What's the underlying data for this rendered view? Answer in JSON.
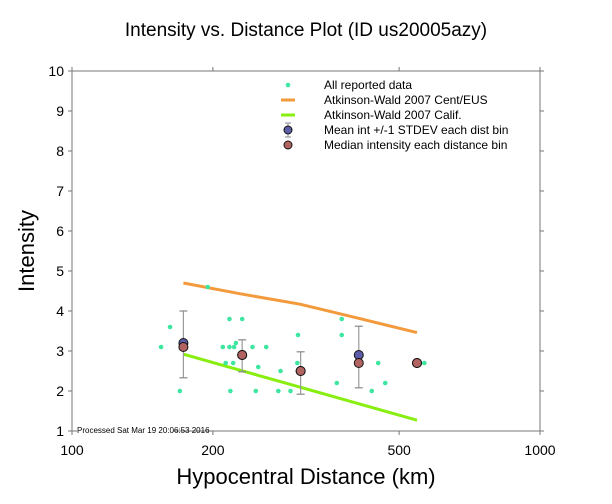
{
  "chart_data": {
    "type": "scatter",
    "title": "Intensity vs. Distance Plot (ID us20005azy)",
    "xlabel": "Hypocentral Distance (km)",
    "ylabel": "Intensity",
    "xscale": "log",
    "xlim": [
      100,
      1000
    ],
    "ylim": [
      1,
      10
    ],
    "xticks": [
      100,
      200,
      500,
      1000
    ],
    "xtick_labels": [
      "100",
      "200",
      "500",
      "1000"
    ],
    "yticks": [
      1,
      2,
      3,
      4,
      5,
      6,
      7,
      8,
      9,
      10
    ],
    "ytick_labels": [
      "1",
      "2",
      "3",
      "4",
      "5",
      "6",
      "7",
      "8",
      "9",
      "10"
    ],
    "grid": false,
    "legend_position": "top-right",
    "annotation": "Processed Sat Mar 19 20:06:53 2016",
    "legend": [
      {
        "label": "All reported data",
        "kind": "dot",
        "color": "#3ee6a0"
      },
      {
        "label": "Atkinson-Wald 2007 Cent/EUS",
        "kind": "line",
        "color": "#f39a3c"
      },
      {
        "label": "Atkinson-Wald 2007 Calif.",
        "kind": "line",
        "color": "#88ee10"
      },
      {
        "label": "Mean int +/-1 STDEV each dist bin",
        "kind": "circle-errorbar",
        "color": "#5c5ca8"
      },
      {
        "label": "Median intensity each distance bin",
        "kind": "circle",
        "color": "#b26462"
      }
    ],
    "series": [
      {
        "name": "All reported data",
        "color": "#3ee6a0",
        "points": [
          [
            155,
            3.1
          ],
          [
            162,
            3.6
          ],
          [
            170,
            2.0
          ],
          [
            195,
            4.6
          ],
          [
            210,
            3.1
          ],
          [
            213,
            2.7
          ],
          [
            217,
            3.8
          ],
          [
            217,
            3.1
          ],
          [
            218,
            2.0
          ],
          [
            221,
            2.7
          ],
          [
            222,
            3.1
          ],
          [
            224,
            3.2
          ],
          [
            231,
            3.8
          ],
          [
            243,
            3.1
          ],
          [
            247,
            2.0
          ],
          [
            250,
            2.6
          ],
          [
            260,
            3.1
          ],
          [
            276,
            2.0
          ],
          [
            279,
            2.5
          ],
          [
            293,
            2.0
          ],
          [
            303,
            2.7
          ],
          [
            304,
            3.4
          ],
          [
            368,
            2.2
          ],
          [
            377,
            3.8
          ],
          [
            377,
            3.4
          ],
          [
            437,
            2.0
          ],
          [
            451,
            2.7
          ],
          [
            467,
            2.2
          ],
          [
            566,
            2.7
          ]
        ]
      },
      {
        "name": "Atkinson-Wald 2007 Cent/EUS",
        "color": "#f39a3c",
        "line": [
          [
            173,
            4.7
          ],
          [
            229,
            4.43
          ],
          [
            307,
            4.17
          ],
          [
            412,
            3.81
          ],
          [
            546,
            3.46
          ]
        ]
      },
      {
        "name": "Atkinson-Wald 2007 Calif.",
        "color": "#88ee10",
        "line": [
          [
            173,
            2.92
          ],
          [
            546,
            1.27
          ]
        ]
      },
      {
        "name": "Mean int +/-1 STDEV each dist bin",
        "color": "#5c5ca8",
        "bins": [
          {
            "distance": 173,
            "mean": 3.2,
            "low": 2.33,
            "high": 4.0
          },
          {
            "distance": 231,
            "mean": 2.9,
            "low": 2.48,
            "high": 3.28
          },
          {
            "distance": 308,
            "mean": 2.5,
            "low": 1.92,
            "high": 2.98
          },
          {
            "distance": 410,
            "mean": 2.9,
            "low": 2.08,
            "high": 3.62
          },
          {
            "distance": 546,
            "mean": 2.7,
            "low": null,
            "high": null
          }
        ]
      },
      {
        "name": "Median intensity each distance bin",
        "color": "#b26462",
        "points": [
          [
            173,
            3.1
          ],
          [
            231,
            2.9
          ],
          [
            308,
            2.5
          ],
          [
            410,
            2.7
          ],
          [
            546,
            2.7
          ]
        ]
      }
    ]
  }
}
